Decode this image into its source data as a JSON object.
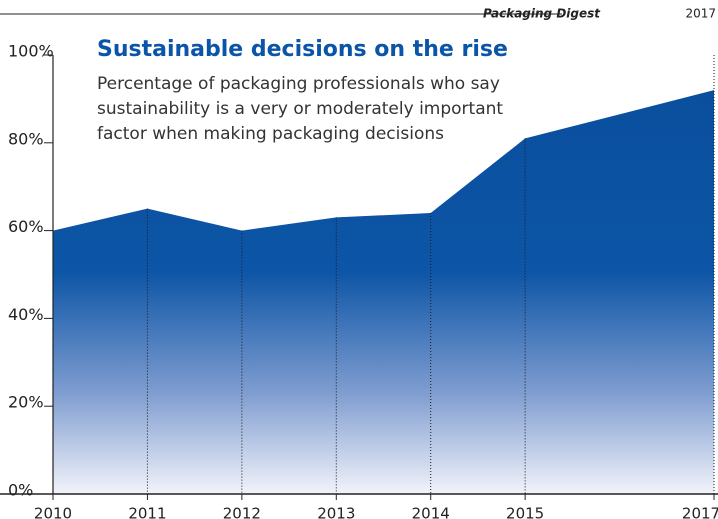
{
  "chart_data": {
    "type": "area",
    "title": "Sustainable decisions on the rise",
    "subtitle": [
      "Percentage of packaging professionals who say",
      "sustainability is a very or moderately important",
      "factor when making packaging decisions"
    ],
    "source": {
      "name": "Packaging Digest",
      "year": "2017"
    },
    "x": [
      2010,
      2011,
      2012,
      2013,
      2014,
      2015,
      2017
    ],
    "series": [
      {
        "color": "#0a4f9e",
        "values": [
          60,
          65,
          60,
          63,
          64,
          81,
          92
        ]
      }
    ],
    "xlim": [
      2010,
      2017
    ],
    "xticks": [
      2010,
      2011,
      2012,
      2013,
      2014,
      2015,
      2017
    ],
    "ylim": [
      0,
      100
    ],
    "yticks": [
      {
        "value": 0,
        "label": "0%"
      },
      {
        "value": 20,
        "label": "20%"
      },
      {
        "value": 40,
        "label": "40%"
      },
      {
        "value": 60,
        "label": "60%"
      },
      {
        "value": 80,
        "label": "80%"
      },
      {
        "value": 100,
        "label": "100%"
      }
    ]
  }
}
